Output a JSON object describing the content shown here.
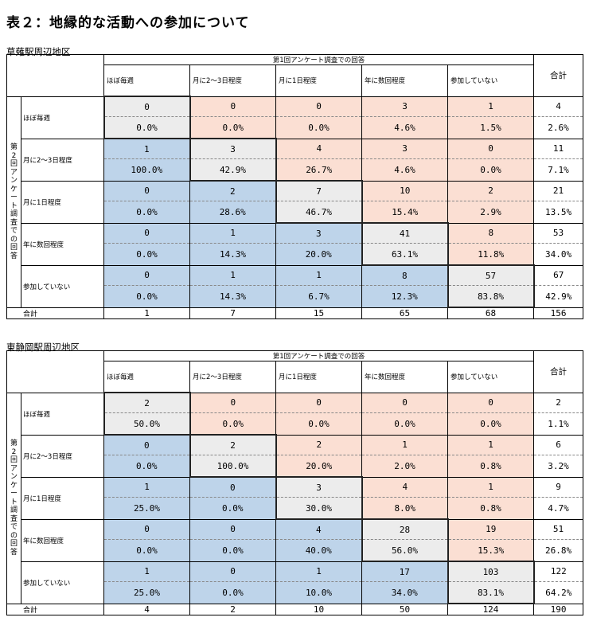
{
  "title": "表２：地縁的な活動への参加について",
  "group_header": "第1回アンケート調査での回答",
  "row_group_label": "第2回アンケート調査での回答",
  "columns": [
    "ほぼ毎週",
    "月に2～3日程度",
    "月に1日程度",
    "年に数回程度",
    "参加していない"
  ],
  "total_label": "合計",
  "colors": {
    "below_diagonal": "#bed4ea",
    "above_diagonal": "#fbdfd3",
    "diagonal": "#ececec"
  },
  "tables": [
    {
      "name": "草薙駅周辺地区",
      "rows": [
        {
          "label": "ほぼ毎週",
          "counts": [
            "0",
            "0",
            "0",
            "3",
            "1"
          ],
          "total": "4",
          "pcts": [
            "0.0%",
            "0.0%",
            "0.0%",
            "4.6%",
            "1.5%"
          ],
          "total_pct": "2.6%"
        },
        {
          "label": "月に2～3日程度",
          "counts": [
            "1",
            "3",
            "4",
            "3",
            "0"
          ],
          "total": "11",
          "pcts": [
            "100.0%",
            "42.9%",
            "26.7%",
            "4.6%",
            "0.0%"
          ],
          "total_pct": "7.1%"
        },
        {
          "label": "月に1日程度",
          "counts": [
            "0",
            "2",
            "7",
            "10",
            "2"
          ],
          "total": "21",
          "pcts": [
            "0.0%",
            "28.6%",
            "46.7%",
            "15.4%",
            "2.9%"
          ],
          "total_pct": "13.5%"
        },
        {
          "label": "年に数回程度",
          "counts": [
            "0",
            "1",
            "3",
            "41",
            "8"
          ],
          "total": "53",
          "pcts": [
            "0.0%",
            "14.3%",
            "20.0%",
            "63.1%",
            "11.8%"
          ],
          "total_pct": "34.0%"
        },
        {
          "label": "参加していない",
          "counts": [
            "0",
            "1",
            "1",
            "8",
            "57"
          ],
          "total": "67",
          "pcts": [
            "0.0%",
            "14.3%",
            "6.7%",
            "12.3%",
            "83.8%"
          ],
          "total_pct": "42.9%"
        }
      ],
      "col_totals": [
        "1",
        "7",
        "15",
        "65",
        "68"
      ],
      "grand_total": "156"
    },
    {
      "name": "東静岡駅周辺地区",
      "rows": [
        {
          "label": "ほぼ毎週",
          "counts": [
            "2",
            "0",
            "0",
            "0",
            "0"
          ],
          "total": "2",
          "pcts": [
            "50.0%",
            "0.0%",
            "0.0%",
            "0.0%",
            "0.0%"
          ],
          "total_pct": "1.1%"
        },
        {
          "label": "月に2～3日程度",
          "counts": [
            "0",
            "2",
            "2",
            "1",
            "1"
          ],
          "total": "6",
          "pcts": [
            "0.0%",
            "100.0%",
            "20.0%",
            "2.0%",
            "0.8%"
          ],
          "total_pct": "3.2%"
        },
        {
          "label": "月に1日程度",
          "counts": [
            "1",
            "0",
            "3",
            "4",
            "1"
          ],
          "total": "9",
          "pcts": [
            "25.0%",
            "0.0%",
            "30.0%",
            "8.0%",
            "0.8%"
          ],
          "total_pct": "4.7%"
        },
        {
          "label": "年に数回程度",
          "counts": [
            "0",
            "0",
            "4",
            "28",
            "19"
          ],
          "total": "51",
          "pcts": [
            "0.0%",
            "0.0%",
            "40.0%",
            "56.0%",
            "15.3%"
          ],
          "total_pct": "26.8%"
        },
        {
          "label": "参加していない",
          "counts": [
            "1",
            "0",
            "1",
            "17",
            "103"
          ],
          "total": "122",
          "pcts": [
            "25.0%",
            "0.0%",
            "10.0%",
            "34.0%",
            "83.1%"
          ],
          "total_pct": "64.2%"
        }
      ],
      "col_totals": [
        "4",
        "2",
        "10",
        "50",
        "124"
      ],
      "grand_total": "190"
    }
  ]
}
